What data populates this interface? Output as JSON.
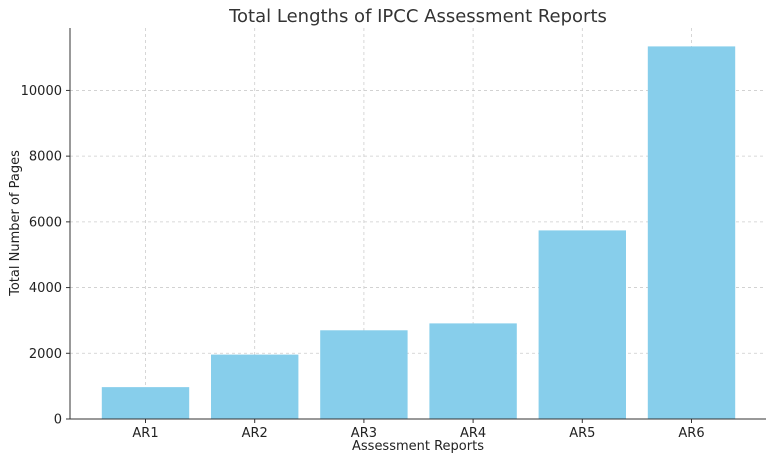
{
  "chart_data": {
    "type": "bar",
    "title": "Total Lengths of IPCC Assessment Reports",
    "xlabel": "Assessment Reports",
    "ylabel": "Total Number of Pages",
    "categories": [
      "AR1",
      "AR2",
      "AR3",
      "AR4",
      "AR5",
      "AR6"
    ],
    "values": [
      970,
      1960,
      2700,
      2910,
      5740,
      11340
    ],
    "ylim": [
      0,
      11900
    ],
    "yticks": [
      0,
      2000,
      4000,
      6000,
      8000,
      10000
    ],
    "grid": true,
    "bar_color": "#87CEEB"
  }
}
